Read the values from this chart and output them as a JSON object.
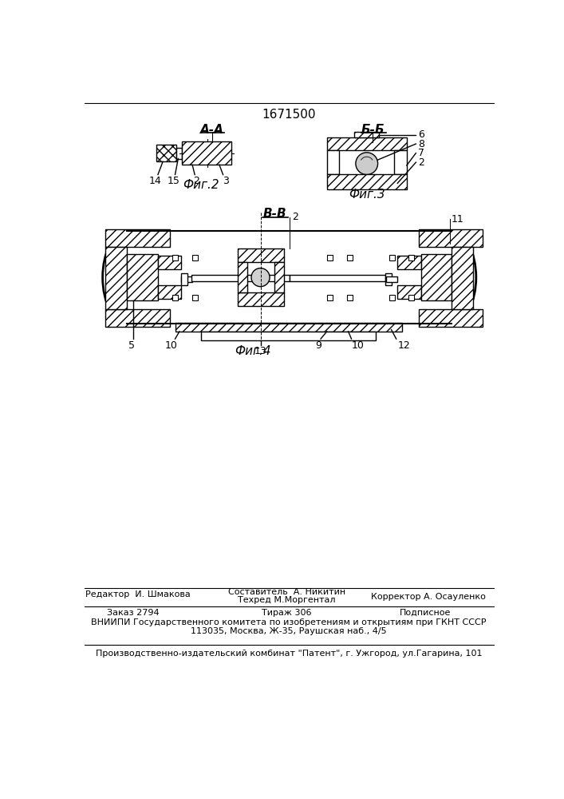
{
  "patent_number": "1671500",
  "background_color": "#ffffff",
  "line_color": "#000000",
  "fig2_label": "А-А",
  "fig2_caption": "Фиг.2",
  "fig3_label": "Б-Б",
  "fig3_caption": "Фиг.3",
  "fig4_label": "В-В",
  "fig4_caption": "Фиг.4",
  "labels_fig2": [
    "14",
    "15",
    "2",
    "3"
  ],
  "labels_fig3": [
    "6",
    "8",
    "7",
    "2"
  ],
  "labels_fig4": [
    "2",
    "11",
    "10",
    "9",
    "10",
    "12",
    "5",
    "13"
  ],
  "footer_editor": "Редактор  И. Шмакова",
  "footer_compiler1": "Составитель  А. Никитин",
  "footer_compiler2": "Техред М.Моргентал",
  "footer_corrector": "Корректор А. Осауленко",
  "footer_order": "Заказ 2794",
  "footer_circulation": "Тираж 306",
  "footer_subscription": "Подписное",
  "footer_vniiipi1": "ВНИИПИ Государственного комитета по изобретениям и открытиям при ГКНТ СССР",
  "footer_vniiipi2": "113035, Москва, Ж-35, Раушская наб., 4/5",
  "footer_publisher": "Производственно-издательский комбинат \"Патент\", г. Ужгород, ул.Гагарина, 101"
}
